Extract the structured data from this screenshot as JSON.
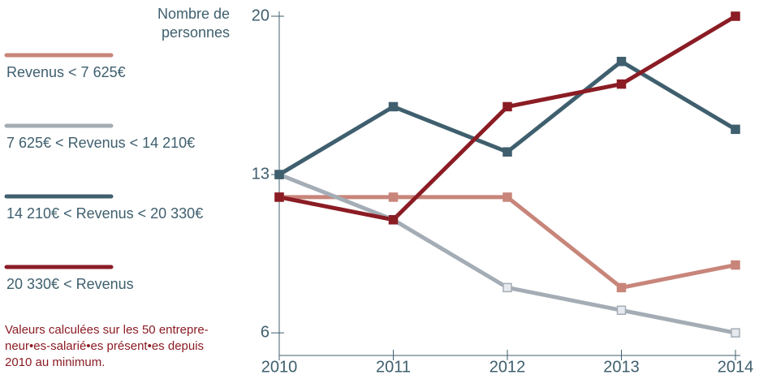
{
  "chart_data": {
    "type": "line",
    "ylabel": "Nombre de personnes",
    "x": [
      2010,
      2011,
      2012,
      2013,
      2014
    ],
    "xlim": [
      2010,
      2014
    ],
    "xticks": [
      2010,
      2011,
      2012,
      2013,
      2014
    ],
    "ylim": [
      5,
      20
    ],
    "yticks": [
      6,
      13,
      20
    ],
    "series": [
      {
        "name": "Revenus < 7 625€",
        "color": "#c8857a",
        "marker_fill": "#c8857a",
        "values": [
          12,
          12,
          12,
          8,
          9
        ]
      },
      {
        "name": "7 625€ < Revenus < 14 210€",
        "color": "#a4adb5",
        "marker_fill": "#e6eaee",
        "values": [
          13,
          11,
          8,
          7,
          6
        ]
      },
      {
        "name": "14 210€ < Revenus < 20 330€",
        "color": "#3f5f6e",
        "marker_fill": "#3f5f6e",
        "values": [
          13,
          16,
          14,
          18,
          15
        ]
      },
      {
        "name": "20 330€ < Revenus",
        "color": "#8b1c24",
        "marker_fill": "#8b1c24",
        "values": [
          12,
          11,
          16,
          17,
          20
        ]
      }
    ],
    "note": [
      "Valeurs calculées sur les 50 entrepre-",
      "neur•es-salarié•es présent•es depuis",
      "2010 au minimum."
    ]
  }
}
